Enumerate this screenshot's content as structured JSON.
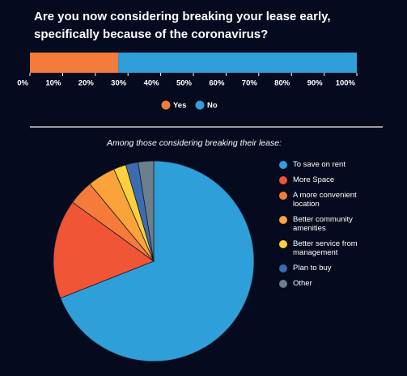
{
  "chart_data": [
    {
      "type": "stacked-bar",
      "orientation": "horizontal",
      "title": "Are you now considering breaking your lease early, specifically because of the coronavirus?",
      "categories": [
        null
      ],
      "series": [
        {
          "name": "Yes",
          "color": "#f47b3a",
          "values": [
            27
          ]
        },
        {
          "name": "No",
          "color": "#2e9fd8",
          "values": [
            73
          ]
        }
      ],
      "xlim": [
        0,
        100
      ],
      "xticks": [
        {
          "value": 0,
          "label": "0%"
        },
        {
          "value": 10,
          "label": "10%"
        },
        {
          "value": 20,
          "label": "20%"
        },
        {
          "value": 30,
          "label": "30%"
        },
        {
          "value": 40,
          "label": "40%"
        },
        {
          "value": 50,
          "label": "50%"
        },
        {
          "value": 60,
          "label": "60%"
        },
        {
          "value": 70,
          "label": "70%"
        },
        {
          "value": 80,
          "label": "80%"
        },
        {
          "value": 90,
          "label": "90%"
        },
        {
          "value": 100,
          "label": "100%"
        }
      ],
      "legend": "bottom"
    },
    {
      "type": "pie",
      "title": "Among those considering breaking their lease:",
      "categories": [
        "To save on rent",
        "More Space",
        "A more convenient location",
        "Better community amenities",
        "Better service from management",
        "Plan to buy",
        "Other"
      ],
      "values": [
        69,
        16,
        4,
        4.5,
        2,
        2,
        2.5
      ],
      "colors": [
        "#2e9fd8",
        "#f05535",
        "#f47b3a",
        "#f9a33a",
        "#fcd03c",
        "#3b6bb0",
        "#6b7f8c"
      ],
      "legend": "right"
    }
  ]
}
